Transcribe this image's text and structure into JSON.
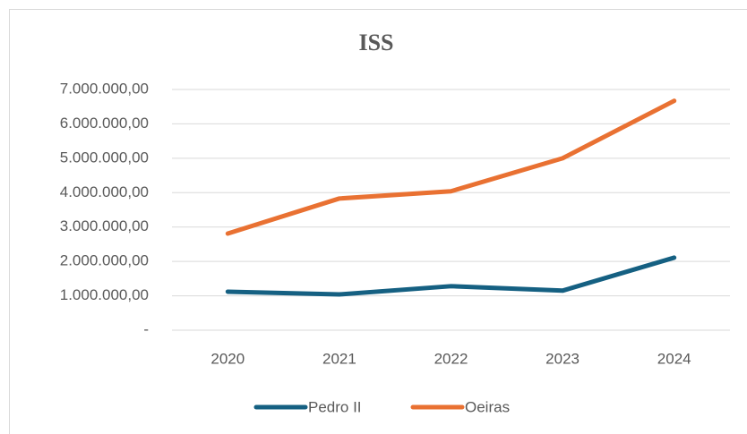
{
  "chart_data": {
    "type": "line",
    "title": "ISS",
    "categories": [
      "2020",
      "2021",
      "2022",
      "2023",
      "2024"
    ],
    "series": [
      {
        "name": "Pedro II",
        "color": "#156082",
        "values": [
          1120000,
          1040000,
          1280000,
          1150000,
          2110000
        ]
      },
      {
        "name": "Oeiras",
        "color": "#e97132",
        "values": [
          2810000,
          3830000,
          4040000,
          5000000,
          6670000
        ]
      }
    ],
    "ylim": [
      0,
      7000000
    ],
    "yticks": [
      {
        "value": 0,
        "label": "-"
      },
      {
        "value": 1000000,
        "label": "1.000.000,00"
      },
      {
        "value": 2000000,
        "label": "2.000.000,00"
      },
      {
        "value": 3000000,
        "label": "3.000.000,00"
      },
      {
        "value": 4000000,
        "label": "4.000.000,00"
      },
      {
        "value": 5000000,
        "label": "5.000.000,00"
      },
      {
        "value": 6000000,
        "label": "6.000.000,00"
      },
      {
        "value": 7000000,
        "label": "7.000.000,00"
      }
    ],
    "grid": true,
    "legend": "bottom"
  }
}
